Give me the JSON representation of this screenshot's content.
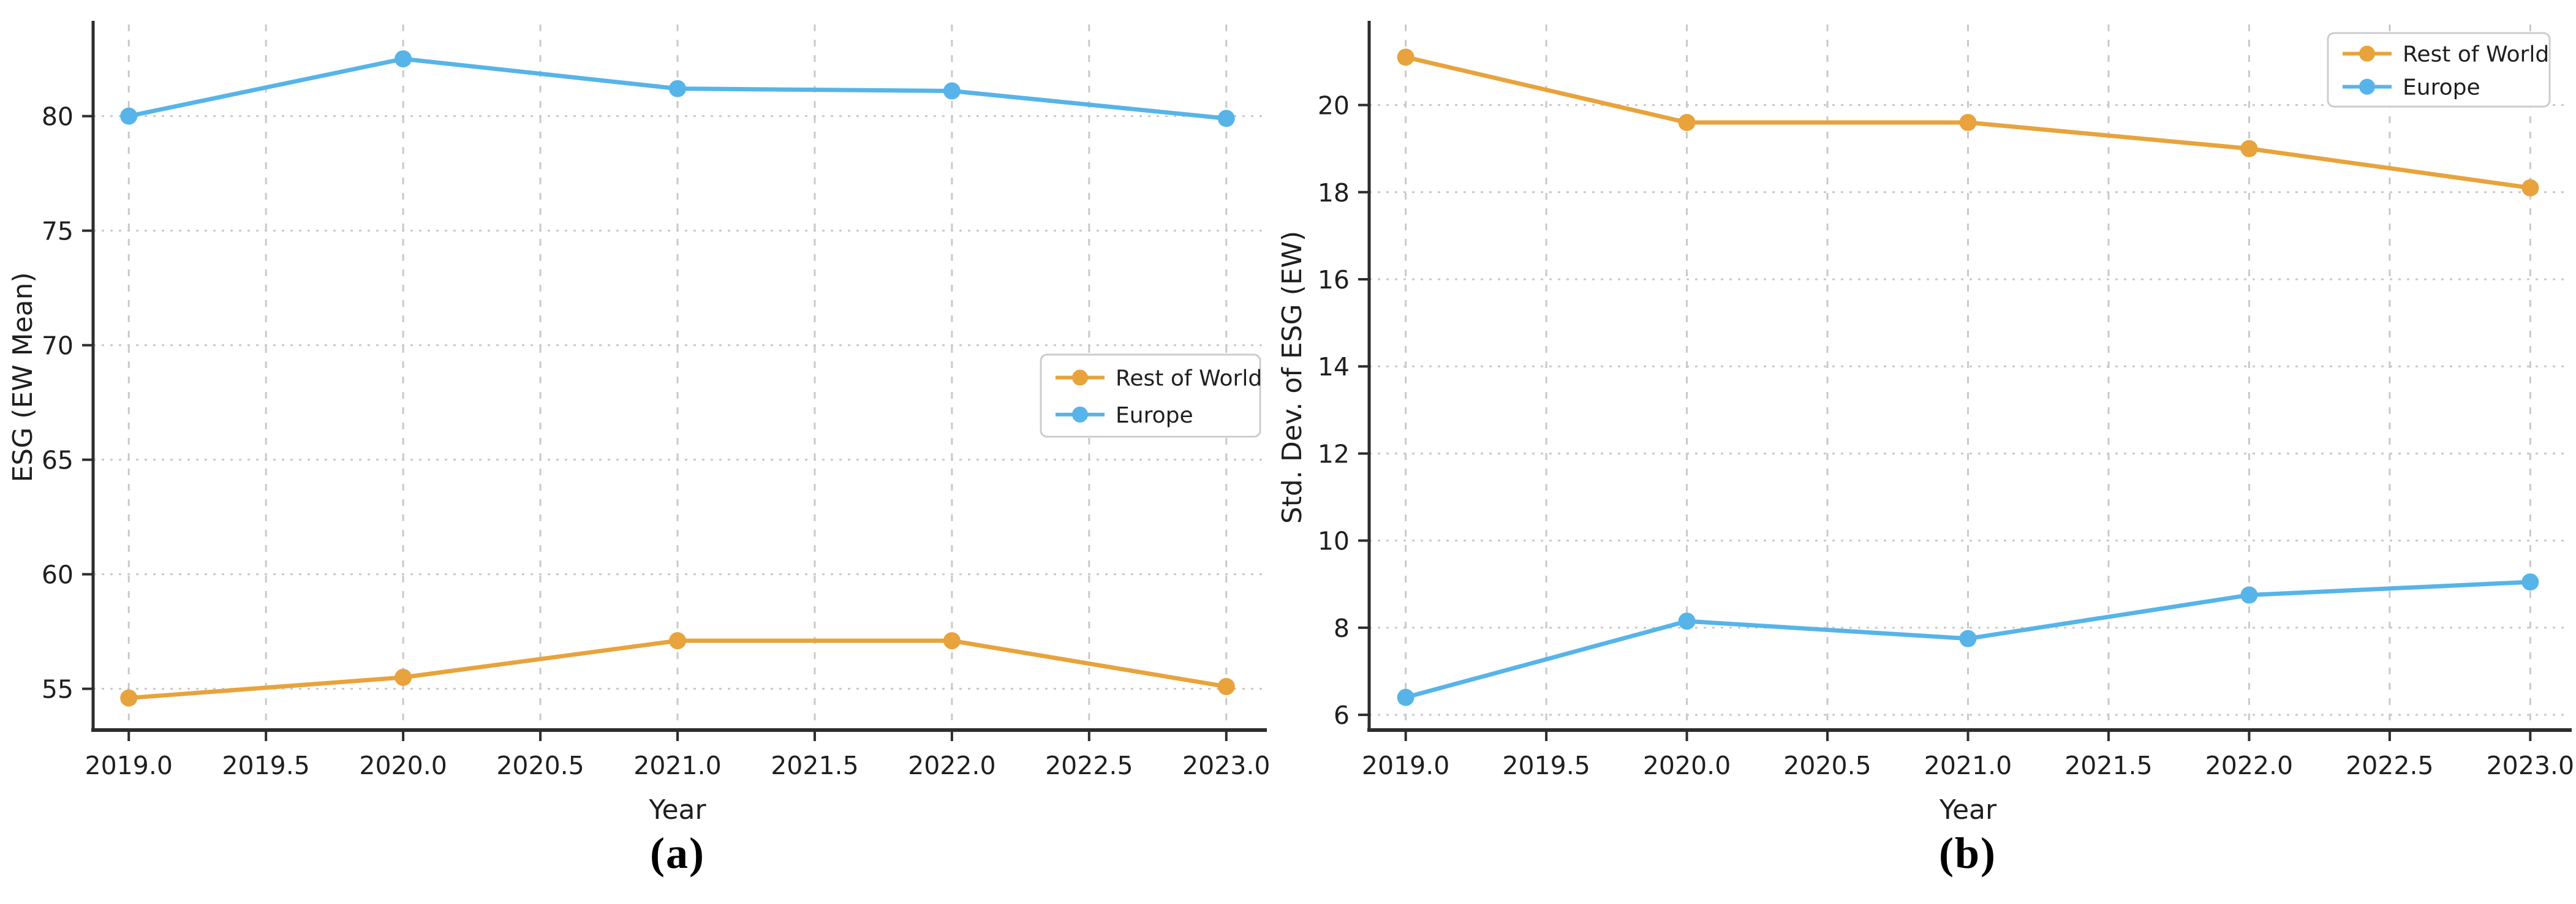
{
  "page": {
    "background": "#ffffff"
  },
  "colors": {
    "rest_of_world": "#E8A33C",
    "europe": "#56B4E9",
    "grid": "#c9c9c9",
    "axis": "#2d2d2d",
    "tick_text": "#1f1f1f",
    "legend_border": "#cccccc",
    "legend_bg": "#ffffff"
  },
  "chart_data": [
    {
      "id": "a",
      "type": "line",
      "title": "",
      "caption": "(a)",
      "xlabel": "Year",
      "ylabel": "ESG (EW Mean)",
      "x": [
        2019,
        2020,
        2021,
        2022,
        2023
      ],
      "series": [
        {
          "name": "Rest of World",
          "color": "#E8A33C",
          "values": [
            54.6,
            55.5,
            57.1,
            57.1,
            55.1
          ]
        },
        {
          "name": "Europe",
          "color": "#56B4E9",
          "values": [
            80.0,
            82.5,
            81.2,
            81.1,
            79.9
          ]
        }
      ],
      "xticks": [
        2019.0,
        2019.5,
        2020.0,
        2020.5,
        2021.0,
        2021.5,
        2022.0,
        2022.5,
        2023.0
      ],
      "xtick_labels": [
        "2019.0",
        "2019.5",
        "2020.0",
        "2020.5",
        "2021.0",
        "2021.5",
        "2022.0",
        "2022.5",
        "2023.0"
      ],
      "yticks": [
        55,
        60,
        65,
        70,
        75,
        80
      ],
      "ytick_labels": [
        "55",
        "60",
        "65",
        "70",
        "75",
        "80"
      ],
      "xlim": [
        2018.87,
        2023.13
      ],
      "ylim": [
        53.2,
        84.0
      ],
      "grid": true,
      "legend": {
        "labels": [
          "Rest of World",
          "Europe"
        ],
        "position": "center-right"
      }
    },
    {
      "id": "b",
      "type": "line",
      "title": "",
      "caption": "(b)",
      "xlabel": "Year",
      "ylabel": "Std. Dev. of ESG (EW)",
      "x": [
        2019,
        2020,
        2021,
        2022,
        2023
      ],
      "series": [
        {
          "name": "Rest of World",
          "color": "#E8A33C",
          "values": [
            21.1,
            19.6,
            19.6,
            19.0,
            18.1
          ]
        },
        {
          "name": "Europe",
          "color": "#56B4E9",
          "values": [
            6.4,
            8.15,
            7.75,
            8.75,
            9.05
          ]
        }
      ],
      "xticks": [
        2019.0,
        2019.5,
        2020.0,
        2020.5,
        2021.0,
        2021.5,
        2022.0,
        2022.5,
        2023.0
      ],
      "xtick_labels": [
        "2019.0",
        "2019.5",
        "2020.0",
        "2020.5",
        "2021.0",
        "2021.5",
        "2022.0",
        "2022.5",
        "2023.0"
      ],
      "yticks": [
        6,
        8,
        10,
        12,
        14,
        16,
        18,
        20
      ],
      "ytick_labels": [
        "6",
        "8",
        "10",
        "12",
        "14",
        "16",
        "18",
        "20"
      ],
      "xlim": [
        2018.87,
        2023.13
      ],
      "ylim": [
        5.65,
        21.85
      ],
      "grid": true,
      "legend": {
        "labels": [
          "Rest of World",
          "Europe"
        ],
        "position": "upper-right"
      }
    }
  ]
}
